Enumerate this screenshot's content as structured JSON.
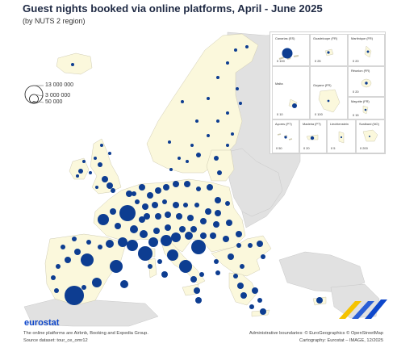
{
  "header": {
    "title": "Guest nights booked via online platforms, April - June 2025",
    "subtitle": "(by NUTS 2 region)"
  },
  "legend": {
    "items": [
      "13 000 000",
      "3 000 000",
      "50 000"
    ]
  },
  "insets": [
    {
      "name": "Canarias (ES)",
      "scale": "0   100"
    },
    {
      "name": "Guadeloupe (FR)",
      "scale": "0   25"
    },
    {
      "name": "Martinique (FR)",
      "scale": "0   20"
    },
    {
      "name": "Réunion (FR)",
      "scale": "0   20"
    },
    {
      "name": "Malta",
      "scale": "0   10"
    },
    {
      "name": "Guyane (FR)",
      "scale": "0   100"
    },
    {
      "name": "Mayotte (FR)",
      "scale": "0   15"
    },
    {
      "name": "Açores (PT)",
      "scale": "0   50"
    },
    {
      "name": "Madeira (PT)",
      "scale": "0   20"
    },
    {
      "name": "Liechtenstein",
      "scale": "0   5"
    },
    {
      "name": "Svalbard (NO)",
      "scale": "0   200"
    }
  ],
  "footer": {
    "brand": "eurostat",
    "note1": "The online platforms are Airbnb, Booking and Expedia Group.",
    "note2": "Source dataset: tour_ce_omr12",
    "credit1": "Administrative boundaries: © EuroGeographics © OpenStreetMap",
    "credit2": "Cartography: Eurostat – IMAGE, 12/2025"
  },
  "colors": {
    "title": "#1f2a44",
    "symbol": "#0d3d91",
    "land_reporting": "#fbf8dc",
    "land_other": "#e1e1e1",
    "sea": "#ffffff",
    "brand": "#0e47cb"
  }
}
